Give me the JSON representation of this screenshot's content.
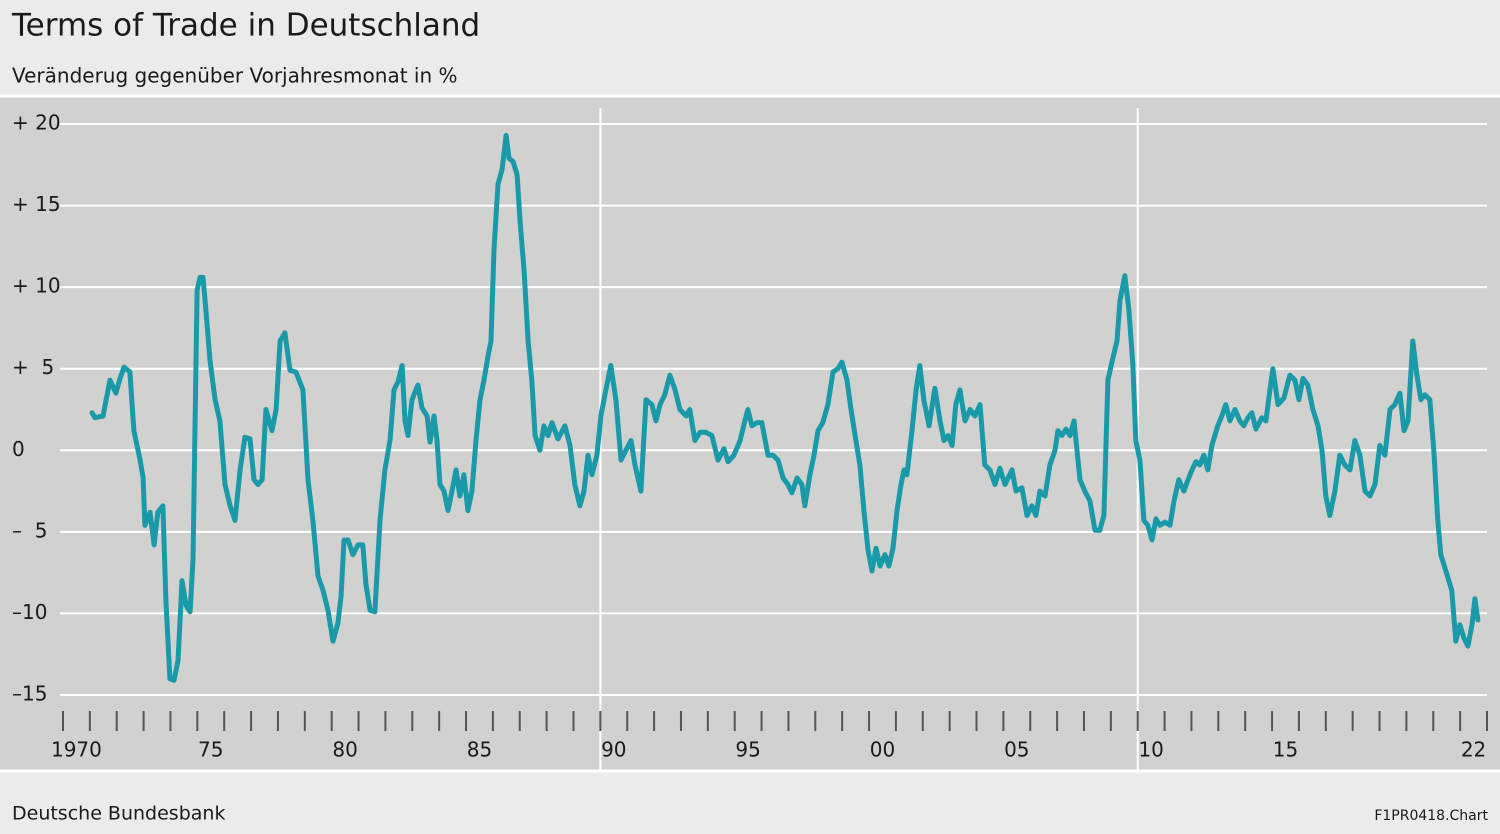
{
  "chart_data": {
    "type": "line",
    "title": "Terms of Trade in Deutschland",
    "subtitle": "Veränderug gegenüber Vorjahresmonat in %",
    "source": "Deutsche Bundesbank",
    "chart_id": "F1PR0418.Chart",
    "color": "#1a9aa8",
    "grid": true,
    "xlim": [
      1970,
      2023
    ],
    "ylim": [
      -15,
      20
    ],
    "yticks": [
      {
        "value": 20,
        "label": "+ 20"
      },
      {
        "value": 15,
        "label": "+ 15"
      },
      {
        "value": 10,
        "label": "+ 10"
      },
      {
        "value": 5,
        "label": "+  5"
      },
      0,
      {
        "value": -5,
        "label": "–  5"
      },
      {
        "value": -10,
        "label": "–10"
      },
      {
        "value": -15,
        "label": "–15"
      }
    ],
    "xticks": [
      {
        "value": 1970.5,
        "label": "1970"
      },
      {
        "value": 1975.5,
        "label": "75"
      },
      {
        "value": 1980.5,
        "label": "80"
      },
      {
        "value": 1985.5,
        "label": "85"
      },
      {
        "value": 1990.5,
        "label": "90"
      },
      {
        "value": 1995.5,
        "label": "95"
      },
      {
        "value": 2000.5,
        "label": "00"
      },
      {
        "value": 2005.5,
        "label": "05"
      },
      {
        "value": 2010.5,
        "label": "10"
      },
      {
        "value": 2015.5,
        "label": "15"
      },
      {
        "value": 2022.5,
        "label": "22"
      }
    ],
    "xminorticks": [
      1970,
      1971,
      1972,
      1973,
      1974,
      1975,
      1976,
      1977,
      1978,
      1979,
      1980,
      1981,
      1982,
      1983,
      1984,
      1985,
      1986,
      1987,
      1988,
      1989,
      1990,
      1991,
      1992,
      1993,
      1994,
      1995,
      1996,
      1997,
      1998,
      1999,
      2000,
      2001,
      2002,
      2003,
      2004,
      2005,
      2006,
      2007,
      2008,
      2009,
      2010,
      2011,
      2012,
      2013,
      2014,
      2015,
      2016,
      2017,
      2018,
      2019,
      2020,
      2021,
      2022,
      2023
    ],
    "xgrid": [
      1990,
      2010
    ],
    "x": [
      1971.08,
      1971.19,
      1971.49,
      1971.75,
      1971.97,
      1972.12,
      1972.27,
      1972.49,
      1972.64,
      1972.87,
      1972.98,
      1973.05,
      1973.24,
      1973.39,
      1973.53,
      1973.72,
      1973.83,
      1973.98,
      1974.13,
      1974.28,
      1974.43,
      1974.58,
      1974.73,
      1974.84,
      1974.99,
      1975.1,
      1975.21,
      1975.32,
      1975.47,
      1975.66,
      1975.84,
      1976.03,
      1976.22,
      1976.4,
      1976.59,
      1976.77,
      1976.96,
      1977.11,
      1977.26,
      1977.41,
      1977.55,
      1977.78,
      1977.93,
      1978.08,
      1978.26,
      1978.45,
      1978.67,
      1978.93,
      1979.12,
      1979.3,
      1979.49,
      1979.68,
      1979.86,
      1980.05,
      1980.23,
      1980.35,
      1980.46,
      1980.61,
      1980.79,
      1980.98,
      1981.16,
      1981.28,
      1981.43,
      1981.61,
      1981.8,
      1981.98,
      1982.17,
      1982.32,
      1982.47,
      1982.62,
      1982.73,
      1982.84,
      1982.99,
      1983.21,
      1983.36,
      1983.55,
      1983.66,
      1983.81,
      1983.92,
      1984.03,
      1984.18,
      1984.33,
      1984.48,
      1984.63,
      1984.77,
      1984.92,
      1985.07,
      1985.22,
      1985.37,
      1985.52,
      1985.67,
      1985.82,
      1985.93,
      1986.04,
      1986.19,
      1986.34,
      1986.49,
      1986.6,
      1986.75,
      1986.9,
      1987.01,
      1987.16,
      1987.31,
      1987.45,
      1987.57,
      1987.75,
      1987.9,
      1988.05,
      1988.2,
      1988.42,
      1988.68,
      1988.87,
      1989.05,
      1989.24,
      1989.39,
      1989.54,
      1989.69,
      1989.87,
      1990.02,
      1990.17,
      1990.39,
      1990.58,
      1990.77,
      1990.95,
      1991.14,
      1991.29,
      1991.51,
      1991.7,
      1991.92,
      1992.07,
      1992.22,
      1992.4,
      1992.59,
      1992.78,
      1992.96,
      1993.19,
      1993.33,
      1993.52,
      1993.71,
      1993.93,
      1994.15,
      1994.38,
      1994.6,
      1994.75,
      1994.97,
      1995.2,
      1995.38,
      1995.49,
      1995.64,
      1995.83,
      1996.01,
      1996.24,
      1996.42,
      1996.61,
      1996.8,
      1996.98,
      1997.13,
      1997.32,
      1997.5,
      1997.61,
      1997.8,
      1997.95,
      1998.1,
      1998.28,
      1998.47,
      1998.66,
      1998.84,
      1998.99,
      1999.18,
      1999.33,
      1999.51,
      1999.66,
      1999.81,
      1999.96,
      2000.11,
      2000.26,
      2000.41,
      2000.59,
      2000.74,
      2000.89,
      2001.04,
      2001.19,
      2001.3,
      2001.41,
      2001.6,
      2001.75,
      2001.89,
      2002.04,
      2002.23,
      2002.45,
      2002.64,
      2002.79,
      2002.94,
      2003.09,
      2003.23,
      2003.38,
      2003.57,
      2003.76,
      2003.94,
      2004.13,
      2004.31,
      2004.5,
      2004.69,
      2004.87,
      2005.06,
      2005.32,
      2005.47,
      2005.69,
      2005.88,
      2006.06,
      2006.21,
      2006.36,
      2006.55,
      2006.73,
      2006.92,
      2007.03,
      2007.18,
      2007.33,
      2007.48,
      2007.63,
      2007.85,
      2008.03,
      2008.22,
      2008.41,
      2008.59,
      2008.74,
      2008.89,
      2009.04,
      2009.23,
      2009.34,
      2009.52,
      2009.67,
      2009.82,
      2009.93,
      2010.08,
      2010.23,
      2010.38,
      2010.53,
      2010.68,
      2010.83,
      2011.01,
      2011.2,
      2011.35,
      2011.53,
      2011.72,
      2011.87,
      2012.02,
      2012.17,
      2012.31,
      2012.46,
      2012.61,
      2012.76,
      2012.98,
      2013.13,
      2013.28,
      2013.43,
      2013.62,
      2013.8,
      2013.95,
      2014.1,
      2014.25,
      2014.4,
      2014.62,
      2014.77,
      2014.92,
      2015.03,
      2015.22,
      2015.44,
      2015.66,
      2015.85,
      2016.0,
      2016.15,
      2016.33,
      2016.52,
      2016.71,
      2016.86,
      2017.0,
      2017.15,
      2017.34,
      2017.52,
      2017.71,
      2017.9,
      2018.08,
      2018.27,
      2018.46,
      2018.64,
      2018.83,
      2019.01,
      2019.2,
      2019.39,
      2019.57,
      2019.76,
      2019.91,
      2020.06,
      2020.24,
      2020.39,
      2020.54,
      2020.69,
      2020.87,
      2021.02,
      2021.17,
      2021.28,
      2021.47,
      2021.69,
      2021.84,
      2021.99,
      2022.14,
      2022.29,
      2022.44,
      2022.55,
      2022.66
    ],
    "values": [
      2.3,
      2.0,
      2.1,
      4.3,
      3.5,
      4.4,
      5.1,
      4.8,
      1.2,
      -0.6,
      -1.7,
      -4.6,
      -3.8,
      -5.8,
      -3.8,
      -3.4,
      -9.2,
      -14.0,
      -14.1,
      -12.9,
      -8.0,
      -9.5,
      -9.9,
      -6.7,
      9.8,
      10.6,
      10.6,
      8.6,
      5.5,
      3.1,
      1.8,
      -2.1,
      -3.4,
      -4.3,
      -1.2,
      0.8,
      0.7,
      -1.8,
      -2.1,
      -1.8,
      2.5,
      1.2,
      2.5,
      6.7,
      7.2,
      4.9,
      4.8,
      3.7,
      -1.8,
      -4.3,
      -7.7,
      -8.6,
      -9.8,
      -11.7,
      -10.6,
      -8.9,
      -5.5,
      -5.5,
      -6.4,
      -5.8,
      -5.8,
      -8.3,
      -9.8,
      -9.9,
      -4.3,
      -1.2,
      0.6,
      3.7,
      4.2,
      5.2,
      1.8,
      0.9,
      3.1,
      4.0,
      2.6,
      2.1,
      0.5,
      2.1,
      0.6,
      -2.1,
      -2.5,
      -3.7,
      -2.5,
      -1.2,
      -2.8,
      -1.5,
      -3.7,
      -2.5,
      0.6,
      3.1,
      4.3,
      5.8,
      6.7,
      12.3,
      16.3,
      17.2,
      19.3,
      17.9,
      17.7,
      16.9,
      14.1,
      11.0,
      6.7,
      4.3,
      0.9,
      0.0,
      1.5,
      0.9,
      1.7,
      0.7,
      1.5,
      0.3,
      -2.1,
      -3.4,
      -2.5,
      -0.3,
      -1.5,
      -0.3,
      2.1,
      3.4,
      5.2,
      3.1,
      -0.6,
      0.0,
      0.6,
      -0.9,
      -2.5,
      3.1,
      2.8,
      1.8,
      2.8,
      3.4,
      4.6,
      3.7,
      2.5,
      2.1,
      2.5,
      0.6,
      1.1,
      1.1,
      0.9,
      -0.6,
      0.1,
      -0.7,
      -0.3,
      0.6,
      1.8,
      2.5,
      1.5,
      1.7,
      1.7,
      -0.3,
      -0.3,
      -0.6,
      -1.7,
      -2.1,
      -2.6,
      -1.7,
      -2.1,
      -3.4,
      -1.5,
      -0.3,
      1.2,
      1.7,
      2.8,
      4.8,
      5.0,
      5.4,
      4.3,
      2.5,
      0.6,
      -0.9,
      -3.7,
      -6.1,
      -7.4,
      -6.0,
      -7.1,
      -6.4,
      -7.1,
      -6.0,
      -3.7,
      -2.1,
      -1.2,
      -1.5,
      1.2,
      3.7,
      5.2,
      3.1,
      1.5,
      3.8,
      1.8,
      0.6,
      0.9,
      0.3,
      2.8,
      3.7,
      1.8,
      2.5,
      2.1,
      2.8,
      -0.9,
      -1.2,
      -2.1,
      -1.1,
      -2.1,
      -1.2,
      -2.5,
      -2.3,
      -4.0,
      -3.4,
      -4.0,
      -2.5,
      -2.8,
      -0.9,
      0.0,
      1.2,
      0.9,
      1.3,
      0.9,
      1.8,
      -1.8,
      -2.5,
      -3.1,
      -4.9,
      -4.9,
      -4.0,
      4.3,
      5.4,
      6.7,
      9.2,
      10.7,
      8.6,
      5.2,
      0.6,
      -0.6,
      -4.3,
      -4.6,
      -5.5,
      -4.2,
      -4.6,
      -4.4,
      -4.6,
      -3.1,
      -1.8,
      -2.5,
      -1.8,
      -1.2,
      -0.7,
      -0.9,
      -0.3,
      -1.2,
      0.3,
      1.5,
      2.1,
      2.8,
      1.8,
      2.5,
      1.8,
      1.5,
      2.0,
      2.3,
      1.3,
      2.0,
      1.8,
      3.7,
      5.0,
      2.8,
      3.2,
      4.6,
      4.3,
      3.1,
      4.4,
      4.0,
      2.5,
      1.5,
      0.0,
      -2.8,
      -4.0,
      -2.5,
      -0.3,
      -0.9,
      -1.2,
      0.6,
      -0.3,
      -2.5,
      -2.8,
      -2.1,
      0.3,
      -0.3,
      2.5,
      2.8,
      3.5,
      1.2,
      1.8,
      6.7,
      4.6,
      3.1,
      3.4,
      3.1,
      0.0,
      -4.3,
      -6.4,
      -7.4,
      -8.6,
      -11.7,
      -10.7,
      -11.5,
      -12.0,
      -10.7,
      -9.1,
      -10.4
    ]
  }
}
